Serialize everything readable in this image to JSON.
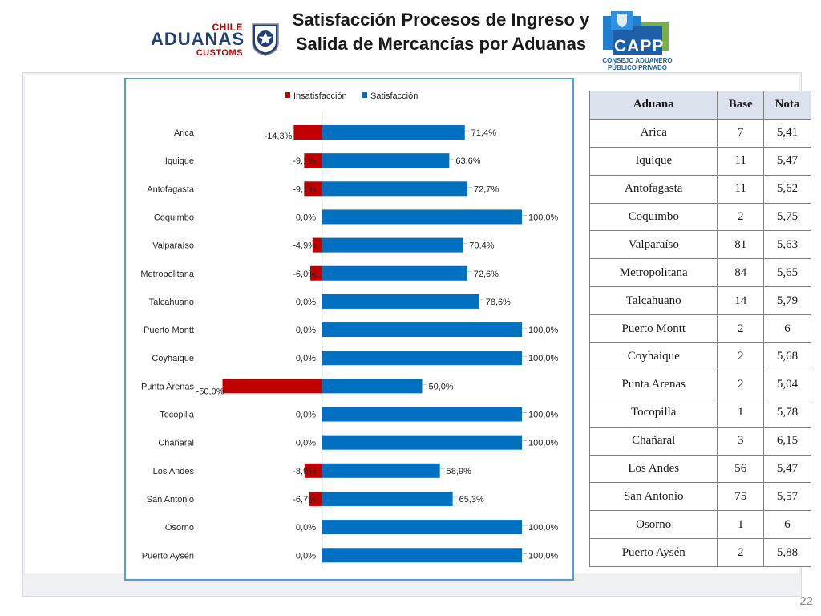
{
  "slide": {
    "title_line1": "Satisfacción Procesos de Ingreso y",
    "title_line2": "Salida de Mercancías por Aduanas",
    "page_number": "22"
  },
  "logos": {
    "aduanas": {
      "chile": "CHILE",
      "aduanas": "ADUANAS",
      "customs": "CUSTOMS"
    },
    "capp": {
      "name": "CAPP",
      "line1": "CONSEJO ADUANERO",
      "line2": "PÚBLICO PRIVADO"
    }
  },
  "colors": {
    "insatisfaccion": "#c00000",
    "satisfaccion": "#0070c0",
    "frame": "#5b9bd5"
  },
  "chart_data": {
    "type": "bar",
    "orientation": "horizontal",
    "stacked": true,
    "legend_position": "top",
    "grid": false,
    "categories": [
      "Arica",
      "Iquique",
      "Antofagasta",
      "Coquimbo",
      "Valparaíso",
      "Metropolitana",
      "Talcahuano",
      "Puerto Montt",
      "Coyhaique",
      "Punta Arenas",
      "Tocopilla",
      "Chañaral",
      "Los Andes",
      "San Antonio",
      "Osorno",
      "Puerto Aysén"
    ],
    "series": [
      {
        "name": "Insatisfacción",
        "values": [
          -14.3,
          -9.1,
          -9.1,
          0.0,
          -4.9,
          -6.0,
          0.0,
          0.0,
          0.0,
          -50.0,
          0.0,
          0.0,
          -8.9,
          -6.7,
          0.0,
          0.0
        ],
        "labels": [
          "-14,3%",
          "-9,1%",
          "-9,1%",
          "0,0%",
          "-4,9%",
          "-6,0%",
          "0,0%",
          "0,0%",
          "0,0%",
          "-50,0%",
          "0,0%",
          "0,0%",
          "-8,9%",
          "-6,7%",
          "0,0%",
          "0,0%"
        ]
      },
      {
        "name": "Satisfacción",
        "values": [
          71.4,
          63.6,
          72.7,
          100.0,
          70.4,
          72.6,
          78.6,
          100.0,
          100.0,
          50.0,
          100.0,
          100.0,
          58.9,
          65.3,
          100.0,
          100.0
        ],
        "labels": [
          "71,4%",
          "63,6%",
          "72,7%",
          "100,0%",
          "70,4%",
          "72,6%",
          "78,6%",
          "100,0%",
          "100,0%",
          "50,0%",
          "100,0%",
          "100,0%",
          "58,9%",
          "65,3%",
          "100,0%",
          "100,0%"
        ]
      }
    ],
    "xlim": [
      -50,
      100
    ]
  },
  "table": {
    "headers": [
      "Aduana",
      "Base",
      "Nota"
    ],
    "rows": [
      [
        "Arica",
        "7",
        "5,41"
      ],
      [
        "Iquique",
        "11",
        "5,47"
      ],
      [
        "Antofagasta",
        "11",
        "5,62"
      ],
      [
        "Coquimbo",
        "2",
        "5,75"
      ],
      [
        "Valparaíso",
        "81",
        "5,63"
      ],
      [
        "Metropolitana",
        "84",
        "5,65"
      ],
      [
        "Talcahuano",
        "14",
        "5,79"
      ],
      [
        "Puerto Montt",
        "2",
        "6"
      ],
      [
        "Coyhaique",
        "2",
        "5,68"
      ],
      [
        "Punta Arenas",
        "2",
        "5,04"
      ],
      [
        "Tocopilla",
        "1",
        "5,78"
      ],
      [
        "Chañaral",
        "3",
        "6,15"
      ],
      [
        "Los Andes",
        "56",
        "5,47"
      ],
      [
        "San Antonio",
        "75",
        "5,57"
      ],
      [
        "Osorno",
        "1",
        "6"
      ],
      [
        "Puerto Aysén",
        "2",
        "5,88"
      ]
    ]
  }
}
